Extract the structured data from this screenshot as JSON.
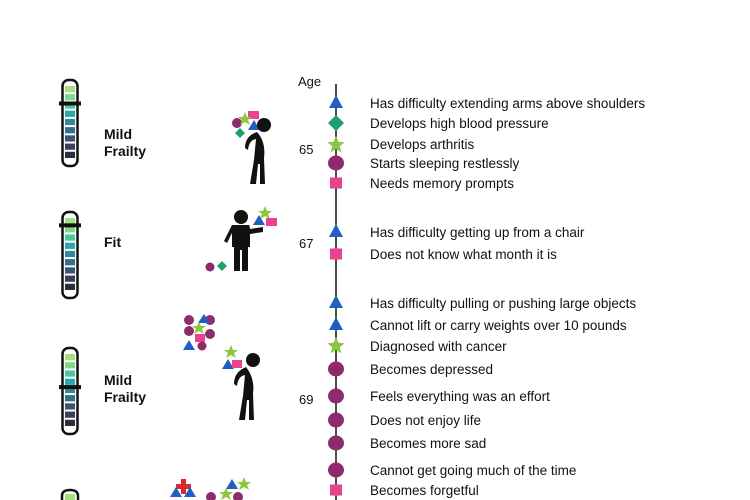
{
  "colors": {
    "triangle": "#1f5fbf",
    "diamond": "#1fa06a",
    "star": "#8cc63f",
    "circle": "#8e2a6e",
    "square": "#e8438f",
    "cross": "#d92b2b",
    "text": "#111111"
  },
  "timeline": {
    "axis_label": "Age",
    "ages": [
      "65",
      "67",
      "69"
    ]
  },
  "stages": [
    {
      "label": "Mild\nFrailty",
      "gauge_level": 0.75
    },
    {
      "label": "Fit",
      "gauge_level": 0.88
    },
    {
      "label": "Mild\nFrailty",
      "gauge_level": 0.55
    }
  ],
  "events": [
    {
      "symbol": "triangle-icon",
      "text": "Has difficulty extending arms above shoulders"
    },
    {
      "symbol": "diamond-icon",
      "text": "Develops high blood pressure"
    },
    {
      "symbol": "star-icon",
      "text": "Develops arthritis"
    },
    {
      "symbol": "circle-icon",
      "text": "Starts sleeping restlessly"
    },
    {
      "symbol": "square-icon",
      "text": "Needs memory prompts"
    },
    {
      "symbol": "triangle-icon",
      "text": "Has difficulty getting up from a chair"
    },
    {
      "symbol": "square-icon",
      "text": "Does not know what month it is"
    },
    {
      "symbol": "triangle-icon",
      "text": "Has difficulty pulling or pushing large objects"
    },
    {
      "symbol": "triangle-icon",
      "text": "Cannot lift or carry weights over 10 pounds"
    },
    {
      "symbol": "star-icon",
      "text": "Diagnosed with cancer"
    },
    {
      "symbol": "circle-icon",
      "text": "Becomes depressed"
    },
    {
      "symbol": "circle-icon",
      "text": "Feels everything was an effort"
    },
    {
      "symbol": "circle-icon",
      "text": "Does not enjoy life"
    },
    {
      "symbol": "circle-icon",
      "text": "Becomes more sad"
    },
    {
      "symbol": "circle-icon",
      "text": "Cannot get going much of the time"
    },
    {
      "symbol": "square-icon",
      "text": "Becomes forgetful"
    }
  ]
}
